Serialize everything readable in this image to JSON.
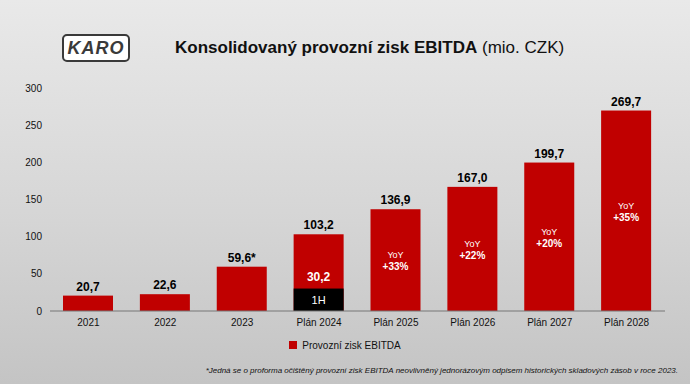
{
  "chart_data": {
    "type": "bar",
    "logo": "KARO",
    "title": "Konsolidovaný provozní zisk EBITDA",
    "subtitle": "(mio. CZK)",
    "categories": [
      "2021",
      "2022",
      "2023",
      "Plán 2024",
      "Plán 2025",
      "Plán 2026",
      "Plán 2027",
      "Plán 2028"
    ],
    "series": [
      {
        "name": "Provozní zisk EBITDA",
        "color": "#c00000",
        "values": [
          20.7,
          22.6,
          59.6,
          103.2,
          136.9,
          167.0,
          199.7,
          269.7
        ],
        "value_labels": [
          "20,7",
          "22,6",
          "59,6*",
          "103,2",
          "136,9",
          "167,0",
          "199,7",
          "269,7"
        ]
      },
      {
        "name": "1H",
        "color": "#000000",
        "values": [
          null,
          null,
          null,
          30.2,
          null,
          null,
          null,
          null
        ],
        "value_labels": [
          null,
          null,
          null,
          "30,2",
          null,
          null,
          null,
          null
        ]
      }
    ],
    "ylim": [
      0,
      300
    ],
    "yticks": [
      0,
      50,
      100,
      150,
      200,
      250,
      300
    ],
    "grid": false,
    "data_labels": true,
    "legend": "bottom",
    "annotations": [
      {
        "x": "Plán 2025",
        "lines": [
          "YoY",
          "+33%"
        ]
      },
      {
        "x": "Plán 2026",
        "lines": [
          "YoY",
          "+22%"
        ]
      },
      {
        "x": "Plán 2027",
        "lines": [
          "YoY",
          "+20%"
        ]
      },
      {
        "x": "Plán 2028",
        "lines": [
          "YoY",
          "+35%"
        ]
      }
    ],
    "footnote": "*Jedná se o proforma očištěný provozní zisk EBITDA neovlivněný jednorázovým odpisem historických skladových zásob v roce 2023."
  }
}
